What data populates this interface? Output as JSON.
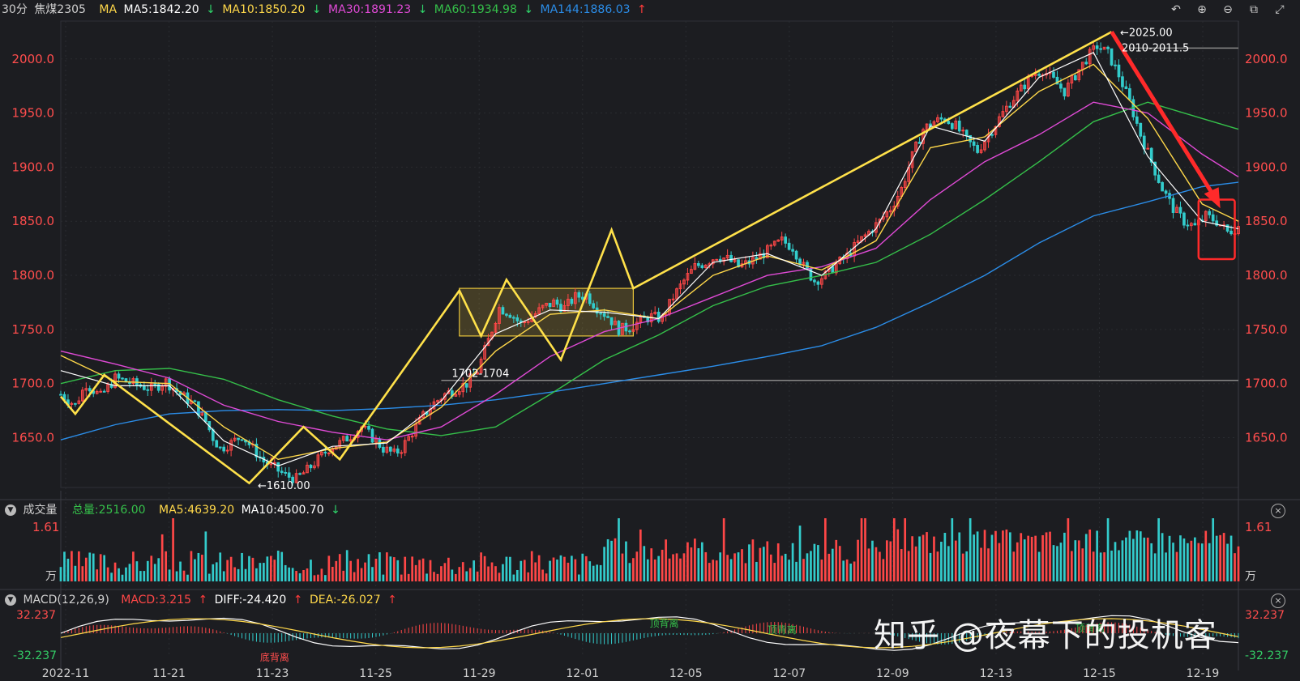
{
  "header": {
    "period": "30分",
    "symbol": "焦煤2305",
    "ma_label": "MA",
    "ma5": "MA5:1842.20",
    "ma10": "MA10:1850.20",
    "ma30": "MA30:1891.23",
    "ma60": "MA60:1934.98",
    "ma144": "MA144:1886.03",
    "arrow_down": "↓",
    "arrow_up": "↑"
  },
  "toolbar_icons": [
    "undo-icon",
    "zoom-in-icon",
    "zoom-out-icon",
    "layout-icon",
    "fullscreen-icon"
  ],
  "volume_panel": {
    "title": "成交量",
    "total": "总量:2516.00",
    "ma5": "MA5:4639.20",
    "ma10": "MA10:4500.70",
    "arrow": "↓",
    "max_label": "1.61",
    "unit": "万"
  },
  "macd_panel": {
    "title": "MACD(12,26,9)",
    "macd": "MACD:3.215",
    "diff": "DIFF:-24.420",
    "dea": "DEA:-26.027",
    "arrow": "↑",
    "top": "32.237",
    "bottom": "-32.237"
  },
  "annotations": {
    "low": "1610.00",
    "high": "2025.00",
    "resistance": "2010-2011.5",
    "support": "1702-1704",
    "macd_labels": [
      "底背离",
      "顶背离",
      "顶背离",
      "顶背离"
    ]
  },
  "watermark": "知乎 @夜幕下的投机客",
  "colors": {
    "up": "#ff4747",
    "down": "#33cccc",
    "ma5": "#ffffff",
    "ma10": "#ffd84a",
    "ma30": "#e04ad6",
    "ma60": "#35c04a",
    "ma144": "#2b8de8",
    "pattern": "#ffe14a",
    "trend_arrow": "#ff2a2a"
  },
  "chart_data": {
    "type": "candlestick",
    "x_ticks": [
      "2022-11",
      "11-21",
      "11-23",
      "11-25",
      "11-29",
      "12-01",
      "12-05",
      "12-07",
      "12-09",
      "12-13",
      "12-15",
      "12-19"
    ],
    "y_ticks": [
      1650.0,
      1700.0,
      1750.0,
      1800.0,
      1850.0,
      1900.0,
      1950.0,
      2000.0
    ],
    "y_tick_labels": [
      "1650.0",
      "1700.0",
      "1750.0",
      "1800.0",
      "1850.0",
      "1900.0",
      "1950.0",
      "2000.0"
    ],
    "ylim": [
      1604,
      2035
    ],
    "close_path": [
      [
        0,
        1690
      ],
      [
        8,
        1680
      ],
      [
        14,
        1700
      ],
      [
        22,
        1688
      ],
      [
        30,
        1705
      ],
      [
        40,
        1700
      ],
      [
        50,
        1695
      ],
      [
        58,
        1702
      ],
      [
        66,
        1690
      ],
      [
        74,
        1680
      ],
      [
        80,
        1665
      ],
      [
        84,
        1650
      ],
      [
        88,
        1640
      ],
      [
        94,
        1645
      ],
      [
        100,
        1652
      ],
      [
        106,
        1640
      ],
      [
        112,
        1628
      ],
      [
        118,
        1622
      ],
      [
        124,
        1615
      ],
      [
        130,
        1612
      ],
      [
        136,
        1620
      ],
      [
        142,
        1630
      ],
      [
        148,
        1640
      ],
      [
        154,
        1645
      ],
      [
        160,
        1652
      ],
      [
        166,
        1660
      ],
      [
        172,
        1650
      ],
      [
        178,
        1640
      ],
      [
        184,
        1635
      ],
      [
        188,
        1640
      ],
      [
        194,
        1655
      ],
      [
        200,
        1670
      ],
      [
        206,
        1682
      ],
      [
        212,
        1690
      ],
      [
        218,
        1695
      ],
      [
        224,
        1700
      ],
      [
        230,
        1712
      ],
      [
        236,
        1740
      ],
      [
        242,
        1770
      ],
      [
        248,
        1765
      ],
      [
        254,
        1755
      ],
      [
        260,
        1762
      ],
      [
        266,
        1770
      ],
      [
        272,
        1775
      ],
      [
        278,
        1770
      ],
      [
        284,
        1780
      ],
      [
        290,
        1782
      ],
      [
        296,
        1770
      ],
      [
        302,
        1762
      ],
      [
        308,
        1750
      ],
      [
        314,
        1752
      ],
      [
        320,
        1758
      ],
      [
        326,
        1762
      ],
      [
        332,
        1760
      ],
      [
        338,
        1780
      ],
      [
        344,
        1795
      ],
      [
        350,
        1808
      ],
      [
        356,
        1812
      ],
      [
        362,
        1818
      ],
      [
        368,
        1815
      ],
      [
        374,
        1808
      ],
      [
        380,
        1812
      ],
      [
        386,
        1818
      ],
      [
        392,
        1825
      ],
      [
        398,
        1832
      ],
      [
        404,
        1826
      ],
      [
        410,
        1808
      ],
      [
        416,
        1795
      ],
      [
        422,
        1800
      ],
      [
        428,
        1810
      ],
      [
        434,
        1818
      ],
      [
        440,
        1830
      ],
      [
        446,
        1840
      ],
      [
        452,
        1850
      ],
      [
        458,
        1862
      ],
      [
        464,
        1880
      ],
      [
        470,
        1910
      ],
      [
        476,
        1935
      ],
      [
        482,
        1942
      ],
      [
        488,
        1945
      ],
      [
        494,
        1938
      ],
      [
        500,
        1925
      ],
      [
        506,
        1915
      ],
      [
        512,
        1930
      ],
      [
        518,
        1945
      ],
      [
        524,
        1960
      ],
      [
        530,
        1972
      ],
      [
        536,
        1985
      ],
      [
        542,
        1990
      ],
      [
        548,
        1980
      ],
      [
        554,
        1970
      ],
      [
        560,
        1985
      ],
      [
        566,
        2000
      ],
      [
        572,
        2012
      ],
      [
        578,
        2005
      ],
      [
        584,
        1985
      ],
      [
        590,
        1960
      ],
      [
        596,
        1930
      ],
      [
        602,
        1905
      ],
      [
        608,
        1880
      ],
      [
        614,
        1862
      ],
      [
        620,
        1850
      ],
      [
        626,
        1845
      ],
      [
        632,
        1855
      ],
      [
        638,
        1850
      ],
      [
        644,
        1840
      ],
      [
        650,
        1845
      ]
    ],
    "ma5": [
      [
        0,
        1712
      ],
      [
        30,
        1698
      ],
      [
        60,
        1698
      ],
      [
        90,
        1647
      ],
      [
        120,
        1624
      ],
      [
        150,
        1642
      ],
      [
        180,
        1645
      ],
      [
        210,
        1684
      ],
      [
        240,
        1746
      ],
      [
        270,
        1768
      ],
      [
        300,
        1766
      ],
      [
        330,
        1760
      ],
      [
        360,
        1812
      ],
      [
        390,
        1820
      ],
      [
        420,
        1800
      ],
      [
        450,
        1843
      ],
      [
        480,
        1938
      ],
      [
        510,
        1924
      ],
      [
        540,
        1983
      ],
      [
        570,
        2006
      ],
      [
        600,
        1910
      ],
      [
        630,
        1850
      ],
      [
        650,
        1843
      ]
    ],
    "ma10": [
      [
        0,
        1726
      ],
      [
        30,
        1702
      ],
      [
        60,
        1700
      ],
      [
        90,
        1660
      ],
      [
        120,
        1630
      ],
      [
        150,
        1640
      ],
      [
        180,
        1646
      ],
      [
        210,
        1678
      ],
      [
        240,
        1730
      ],
      [
        270,
        1764
      ],
      [
        300,
        1768
      ],
      [
        330,
        1760
      ],
      [
        360,
        1800
      ],
      [
        390,
        1818
      ],
      [
        420,
        1805
      ],
      [
        450,
        1832
      ],
      [
        480,
        1918
      ],
      [
        510,
        1928
      ],
      [
        540,
        1970
      ],
      [
        570,
        1995
      ],
      [
        600,
        1945
      ],
      [
        630,
        1866
      ],
      [
        650,
        1850
      ]
    ],
    "ma30": [
      [
        0,
        1730
      ],
      [
        30,
        1718
      ],
      [
        60,
        1705
      ],
      [
        90,
        1680
      ],
      [
        120,
        1665
      ],
      [
        150,
        1655
      ],
      [
        180,
        1648
      ],
      [
        210,
        1660
      ],
      [
        240,
        1690
      ],
      [
        270,
        1725
      ],
      [
        300,
        1748
      ],
      [
        330,
        1760
      ],
      [
        360,
        1780
      ],
      [
        390,
        1800
      ],
      [
        420,
        1808
      ],
      [
        450,
        1825
      ],
      [
        480,
        1870
      ],
      [
        510,
        1905
      ],
      [
        540,
        1930
      ],
      [
        570,
        1960
      ],
      [
        600,
        1950
      ],
      [
        630,
        1912
      ],
      [
        650,
        1891
      ]
    ],
    "ma60": [
      [
        0,
        1700
      ],
      [
        30,
        1712
      ],
      [
        60,
        1714
      ],
      [
        90,
        1704
      ],
      [
        120,
        1685
      ],
      [
        150,
        1670
      ],
      [
        180,
        1658
      ],
      [
        210,
        1652
      ],
      [
        240,
        1660
      ],
      [
        270,
        1690
      ],
      [
        300,
        1722
      ],
      [
        330,
        1745
      ],
      [
        360,
        1772
      ],
      [
        390,
        1790
      ],
      [
        420,
        1800
      ],
      [
        450,
        1812
      ],
      [
        480,
        1838
      ],
      [
        510,
        1870
      ],
      [
        540,
        1905
      ],
      [
        570,
        1942
      ],
      [
        600,
        1960
      ],
      [
        630,
        1945
      ],
      [
        650,
        1935
      ]
    ],
    "ma144": [
      [
        0,
        1648
      ],
      [
        30,
        1662
      ],
      [
        60,
        1672
      ],
      [
        90,
        1675
      ],
      [
        120,
        1676
      ],
      [
        150,
        1675
      ],
      [
        180,
        1677
      ],
      [
        210,
        1680
      ],
      [
        240,
        1685
      ],
      [
        270,
        1692
      ],
      [
        300,
        1700
      ],
      [
        330,
        1708
      ],
      [
        360,
        1716
      ],
      [
        390,
        1725
      ],
      [
        420,
        1735
      ],
      [
        450,
        1752
      ],
      [
        480,
        1775
      ],
      [
        510,
        1800
      ],
      [
        540,
        1830
      ],
      [
        570,
        1855
      ],
      [
        600,
        1868
      ],
      [
        630,
        1882
      ],
      [
        650,
        1886
      ]
    ],
    "zigzag_pattern": [
      [
        0,
        1688
      ],
      [
        8,
        1672
      ],
      [
        24,
        1708
      ],
      [
        104,
        1608
      ],
      [
        134,
        1660
      ],
      [
        154,
        1630
      ],
      [
        220,
        1786
      ],
      [
        232,
        1744
      ],
      [
        246,
        1796
      ],
      [
        276,
        1722
      ],
      [
        304,
        1842
      ],
      [
        316,
        1788
      ],
      [
        580,
        2025
      ]
    ],
    "consolidation_box": {
      "x": [
        220,
        316
      ],
      "y": [
        1744,
        1788
      ]
    },
    "trend_arrow": {
      "from": [
        580,
        2025
      ],
      "to": [
        640,
        1862
      ]
    },
    "highlight_box": {
      "x": [
        628,
        648
      ],
      "y": [
        1815,
        1870
      ]
    },
    "resistance_line": {
      "x": [
        590,
        650
      ],
      "y": 2010
    },
    "support_line": {
      "x": [
        210,
        650
      ],
      "y": 1703
    }
  }
}
